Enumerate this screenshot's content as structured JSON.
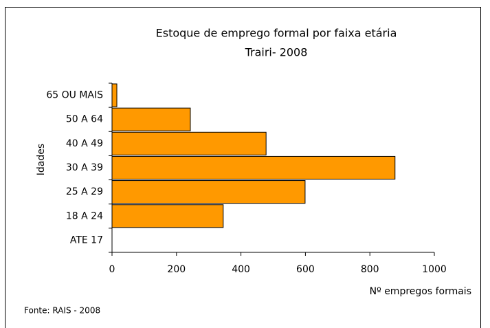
{
  "chart_data": {
    "type": "hbar",
    "title": "Estoque de emprego formal por faixa etária",
    "subtitle": "Trairi- 2008",
    "y_label": "Idades",
    "x_label": "Nº empregos formais",
    "source": "Fonte: RAIS - 2008",
    "categories": [
      "65 OU MAIS",
      "50 A 64",
      "40 A 49",
      "30 A 39",
      "25 A 29",
      "18 A 24",
      "ATE 17"
    ],
    "values": [
      15,
      243,
      478,
      878,
      599,
      345,
      0
    ],
    "color": "#ff9900",
    "xlim": [
      0,
      1000
    ],
    "xticks": [
      0,
      200,
      400,
      600,
      800,
      1000
    ],
    "grid": false
  }
}
